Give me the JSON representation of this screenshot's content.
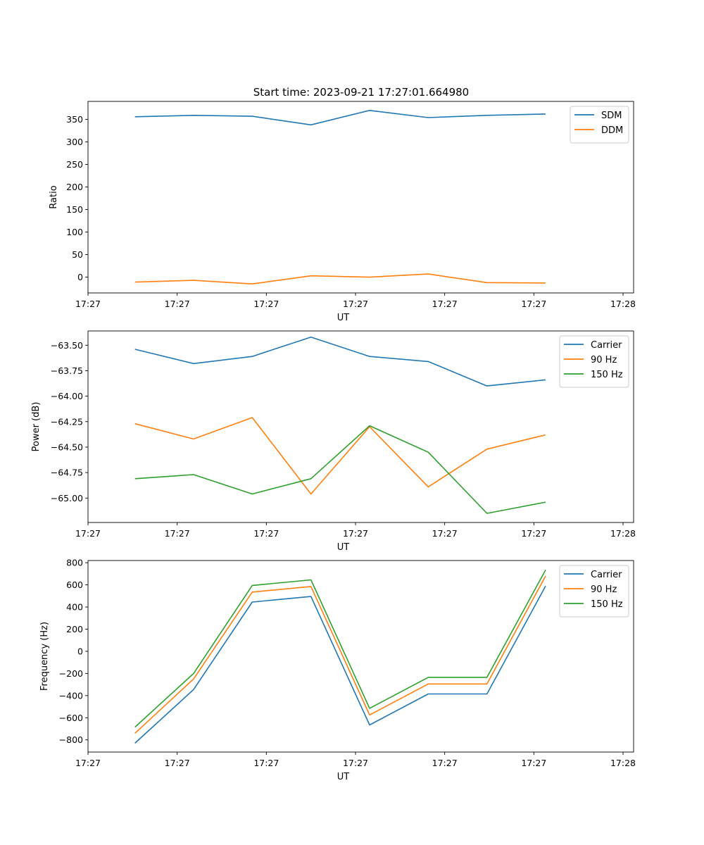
{
  "figure_title": "Start time: 2023-09-21 17:27:01.664980",
  "colors": {
    "c0": "#1f77b4",
    "c1": "#ff7f0e",
    "c2": "#2ca02c"
  },
  "chart_data": [
    {
      "type": "line",
      "title": "Start time: 2023-09-21 17:27:01.664980",
      "xlabel": "UT",
      "ylabel": "Ratio",
      "x": [
        1,
        2,
        3,
        4,
        5,
        6,
        7,
        8
      ],
      "xlim": [
        0.2,
        9.5
      ],
      "ylim": [
        -35,
        390
      ],
      "yticks": [
        0,
        50,
        100,
        150,
        200,
        250,
        300,
        350
      ],
      "ytick_labels": [
        "0",
        "50",
        "100",
        "150",
        "200",
        "250",
        "300",
        "350"
      ],
      "xticks": [
        0.2,
        1.72,
        3.24,
        4.76,
        6.28,
        7.8,
        9.32
      ],
      "xtick_labels": [
        "17:27",
        "17:27",
        "17:27",
        "17:27",
        "17:27",
        "17:27",
        "17:28"
      ],
      "legend": "top-right",
      "series": [
        {
          "name": "SDM",
          "color": "#1f77b4",
          "values": [
            356,
            359,
            357,
            338,
            370,
            354,
            359,
            362
          ]
        },
        {
          "name": "DDM",
          "color": "#ff7f0e",
          "values": [
            -11,
            -7,
            -15,
            3,
            0,
            7,
            -12,
            -13
          ]
        }
      ]
    },
    {
      "type": "line",
      "title": "",
      "xlabel": "UT",
      "ylabel": "Power (dB)",
      "x": [
        1,
        2,
        3,
        4,
        5,
        6,
        7,
        8
      ],
      "xlim": [
        0.2,
        9.5
      ],
      "ylim": [
        -65.24,
        -63.36
      ],
      "yticks": [
        -65.0,
        -64.75,
        -64.5,
        -64.25,
        -64.0,
        -63.75,
        -63.5
      ],
      "ytick_labels": [
        "−65.00",
        "−64.75",
        "−64.50",
        "−64.25",
        "−64.00",
        "−63.75",
        "−63.50"
      ],
      "xticks": [
        0.2,
        1.72,
        3.24,
        4.76,
        6.28,
        7.8,
        9.32
      ],
      "xtick_labels": [
        "17:27",
        "17:27",
        "17:27",
        "17:27",
        "17:27",
        "17:27",
        "17:28"
      ],
      "legend": "top-right",
      "series": [
        {
          "name": "Carrier",
          "color": "#1f77b4",
          "values": [
            -63.54,
            -63.68,
            -63.61,
            -63.42,
            -63.61,
            -63.66,
            -63.9,
            -63.84
          ]
        },
        {
          "name": "90 Hz",
          "color": "#ff7f0e",
          "values": [
            -64.27,
            -64.42,
            -64.21,
            -64.96,
            -64.3,
            -64.89,
            -64.52,
            -64.38
          ]
        },
        {
          "name": "150 Hz",
          "color": "#2ca02c",
          "values": [
            -64.81,
            -64.77,
            -64.96,
            -64.81,
            -64.29,
            -64.55,
            -65.15,
            -65.04
          ]
        }
      ]
    },
    {
      "type": "line",
      "title": "",
      "xlabel": "UT",
      "ylabel": "Frequency (Hz)",
      "x": [
        1,
        2,
        3,
        4,
        5,
        6,
        7,
        8
      ],
      "xlim": [
        0.2,
        9.5
      ],
      "ylim": [
        -910,
        820
      ],
      "yticks": [
        -800,
        -600,
        -400,
        -200,
        0,
        200,
        400,
        600,
        800
      ],
      "ytick_labels": [
        "−800",
        "−600",
        "−400",
        "−200",
        "0",
        "200",
        "400",
        "600",
        "800"
      ],
      "xticks": [
        0.2,
        1.72,
        3.24,
        4.76,
        6.28,
        7.8,
        9.32
      ],
      "xtick_labels": [
        "17:27",
        "17:27",
        "17:27",
        "17:27",
        "17:27",
        "17:27",
        "17:28"
      ],
      "legend": "top-right",
      "series": [
        {
          "name": "Carrier",
          "color": "#1f77b4",
          "values": [
            -830,
            -345,
            445,
            495,
            -665,
            -385,
            -385,
            590
          ]
        },
        {
          "name": "90 Hz",
          "color": "#ff7f0e",
          "values": [
            -740,
            -250,
            535,
            585,
            -575,
            -295,
            -295,
            680
          ]
        },
        {
          "name": "150 Hz",
          "color": "#2ca02c",
          "values": [
            -685,
            -200,
            595,
            645,
            -515,
            -235,
            -235,
            735
          ]
        }
      ]
    }
  ]
}
